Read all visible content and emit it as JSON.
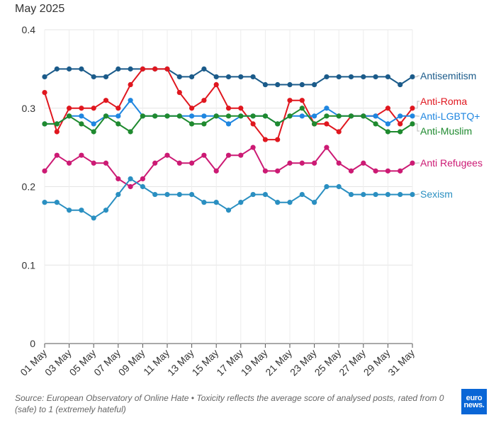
{
  "chart_data": {
    "type": "line",
    "title": "May 2025",
    "xlabel": "",
    "ylabel": "",
    "ylim": [
      0,
      0.4
    ],
    "yticks": [
      "0",
      "0.1",
      "0.2",
      "0.3",
      "0.4"
    ],
    "x": [
      "01 May",
      "02 May",
      "03 May",
      "04 May",
      "05 May",
      "06 May",
      "07 May",
      "08 May",
      "09 May",
      "10 May",
      "11 May",
      "12 May",
      "13 May",
      "14 May",
      "15 May",
      "16 May",
      "17 May",
      "18 May",
      "19 May",
      "20 May",
      "21 May",
      "22 May",
      "23 May",
      "24 May",
      "25 May",
      "26 May",
      "27 May",
      "28 May",
      "29 May",
      "30 May",
      "31 May"
    ],
    "xtick_labels": [
      "01 May",
      "03 May",
      "05 May",
      "07 May",
      "09 May",
      "11 May",
      "13 May",
      "15 May",
      "17 May",
      "19 May",
      "21 May",
      "23 May",
      "25 May",
      "27 May",
      "29 May",
      "31 May"
    ],
    "series": [
      {
        "name": "Antisemitism",
        "color": "#1b5b8a",
        "values": [
          0.34,
          0.35,
          0.35,
          0.35,
          0.34,
          0.34,
          0.35,
          0.35,
          0.35,
          0.35,
          0.35,
          0.34,
          0.34,
          0.35,
          0.34,
          0.34,
          0.34,
          0.34,
          0.33,
          0.33,
          0.33,
          0.33,
          0.33,
          0.34,
          0.34,
          0.34,
          0.34,
          0.34,
          0.34,
          0.33,
          0.34
        ]
      },
      {
        "name": "Anti-Roma",
        "color": "#e0171f",
        "values": [
          0.32,
          0.27,
          0.3,
          0.3,
          0.3,
          0.31,
          0.3,
          0.33,
          0.35,
          0.35,
          0.35,
          0.32,
          0.3,
          0.31,
          0.33,
          0.3,
          0.3,
          0.28,
          0.26,
          0.26,
          0.31,
          0.31,
          0.28,
          0.28,
          0.27,
          0.29,
          0.29,
          0.29,
          0.3,
          0.28,
          0.3
        ]
      },
      {
        "name": "Anti-LGBTQ+",
        "color": "#1f86e0",
        "values": [
          0.28,
          0.28,
          0.29,
          0.29,
          0.28,
          0.29,
          0.29,
          0.31,
          0.29,
          0.29,
          0.29,
          0.29,
          0.29,
          0.29,
          0.29,
          0.28,
          0.29,
          0.29,
          0.29,
          0.28,
          0.29,
          0.29,
          0.29,
          0.3,
          0.29,
          0.29,
          0.29,
          0.29,
          0.28,
          0.29,
          0.29
        ]
      },
      {
        "name": "Anti-Muslim",
        "color": "#1f8a2f",
        "values": [
          0.28,
          0.28,
          0.29,
          0.28,
          0.27,
          0.29,
          0.28,
          0.27,
          0.29,
          0.29,
          0.29,
          0.29,
          0.28,
          0.28,
          0.29,
          0.29,
          0.29,
          0.29,
          0.29,
          0.28,
          0.29,
          0.3,
          0.28,
          0.29,
          0.29,
          0.29,
          0.29,
          0.28,
          0.27,
          0.27,
          0.28
        ]
      },
      {
        "name": "Anti Refugees",
        "color": "#cc1a74",
        "values": [
          0.22,
          0.24,
          0.23,
          0.24,
          0.23,
          0.23,
          0.21,
          0.2,
          0.21,
          0.23,
          0.24,
          0.23,
          0.23,
          0.24,
          0.22,
          0.24,
          0.24,
          0.25,
          0.22,
          0.22,
          0.23,
          0.23,
          0.23,
          0.25,
          0.23,
          0.22,
          0.23,
          0.22,
          0.22,
          0.22,
          0.23
        ]
      },
      {
        "name": "Sexism",
        "color": "#2a8fc1",
        "values": [
          0.18,
          0.18,
          0.17,
          0.17,
          0.16,
          0.17,
          0.19,
          0.21,
          0.2,
          0.19,
          0.19,
          0.19,
          0.19,
          0.18,
          0.18,
          0.17,
          0.18,
          0.19,
          0.19,
          0.18,
          0.18,
          0.19,
          0.18,
          0.2,
          0.2,
          0.19,
          0.19,
          0.19,
          0.19,
          0.19,
          0.19
        ]
      }
    ],
    "source": "Source: European Observatory of Online Hate • Toxicity reflects the average score of analysed posts, rated from 0 (safe) to 1 (extremely hateful)"
  },
  "logo": {
    "line1": "euro",
    "line2": "news."
  }
}
